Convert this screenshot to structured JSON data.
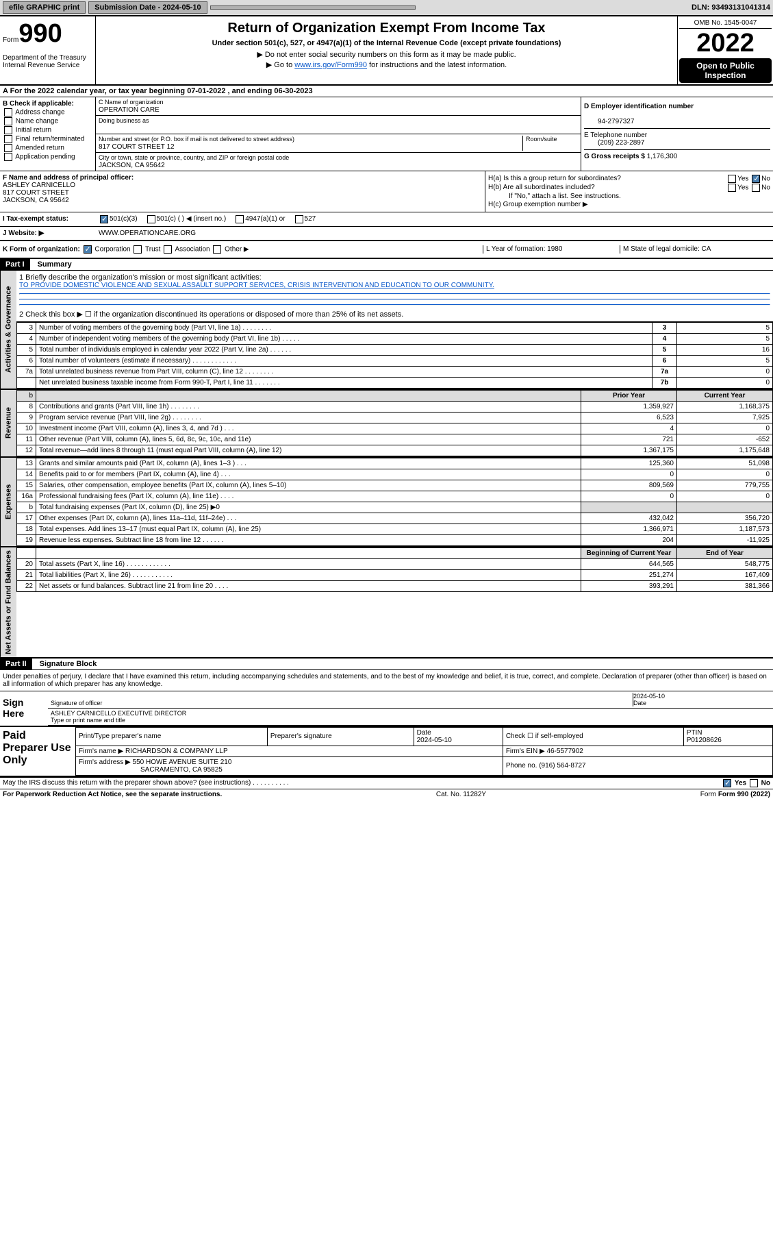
{
  "topbar": {
    "efile": "efile GRAPHIC print",
    "sub_label": "Submission Date - 2024-05-10",
    "dln": "DLN: 93493131041314"
  },
  "header": {
    "form_label": "Form",
    "form_number": "990",
    "title": "Return of Organization Exempt From Income Tax",
    "sub1": "Under section 501(c), 527, or 4947(a)(1) of the Internal Revenue Code (except private foundations)",
    "note1": "▶ Do not enter social security numbers on this form as it may be made public.",
    "note2_pre": "▶ Go to ",
    "note2_link": "www.irs.gov/Form990",
    "note2_post": " for instructions and the latest information.",
    "dept": "Department of the Treasury\nInternal Revenue Service",
    "omb": "OMB No. 1545-0047",
    "year": "2022",
    "inspection": "Open to Public Inspection"
  },
  "A": {
    "text": "A For the 2022 calendar year, or tax year beginning 07-01-2022     , and ending 06-30-2023"
  },
  "B": {
    "label": "B Check if applicable:",
    "opts": [
      "Address change",
      "Name change",
      "Initial return",
      "Final return/terminated",
      "Amended return",
      "Application pending"
    ]
  },
  "C": {
    "name_lbl": "C Name of organization",
    "name": "OPERATION CARE",
    "dba_lbl": "Doing business as",
    "addr_lbl": "Number and street (or P.O. box if mail is not delivered to street address)",
    "addr": "817 COURT STREET 12",
    "room_lbl": "Room/suite",
    "city_lbl": "City or town, state or province, country, and ZIP or foreign postal code",
    "city": "JACKSON, CA  95642"
  },
  "D": {
    "ein_lbl": "D Employer identification number",
    "ein": "94-2797327",
    "phone_lbl": "E Telephone number",
    "phone": "(209) 223-2897",
    "gross_lbl": "G Gross receipts $",
    "gross": "1,176,300"
  },
  "F": {
    "lbl": "F Name and address of principal officer:",
    "name": "ASHLEY CARNICELLO",
    "addr1": "817 COURT STREET",
    "addr2": "JACKSON, CA  95642"
  },
  "H": {
    "a": "H(a)  Is this a group return for subordinates?",
    "a_no": "No",
    "b": "H(b)  Are all subordinates included?",
    "b_note": "If \"No,\" attach a list. See instructions.",
    "c": "H(c)  Group exemption number ▶"
  },
  "I": {
    "lbl": "I   Tax-exempt status:",
    "opts": [
      "501(c)(3)",
      "501(c) (  ) ◀ (insert no.)",
      "4947(a)(1) or",
      "527"
    ]
  },
  "J": {
    "lbl": "J   Website: ▶",
    "val": "WWW.OPERATIONCARE.ORG"
  },
  "K": {
    "lbl": "K Form of organization:",
    "opts": [
      "Corporation",
      "Trust",
      "Association",
      "Other ▶"
    ],
    "L": "L Year of formation: 1980",
    "M": "M State of legal domicile: CA"
  },
  "part1": {
    "hdr": "Part I",
    "title": "Summary",
    "line1_lbl": "1  Briefly describe the organization's mission or most significant activities:",
    "mission": "TO PROVIDE DOMESTIC VIOLENCE AND SEXUAL ASSAULT SUPPORT SERVICES, CRISIS INTERVENTION AND EDUCATION TO OUR COMMUNITY.",
    "line2": "2   Check this box ▶ ☐  if the organization discontinued its operations or disposed of more than 25% of its net assets.",
    "sides": {
      "gov": "Activities & Governance",
      "rev": "Revenue",
      "exp": "Expenses",
      "net": "Net Assets or Fund Balances"
    },
    "rows_gov": [
      {
        "n": "3",
        "d": "Number of voting members of the governing body (Part VI, line 1a)   .    .    .    .    .    .    .    .",
        "b": "3",
        "v": "5"
      },
      {
        "n": "4",
        "d": "Number of independent voting members of the governing body (Part VI, line 1b)  .    .    .    .    .",
        "b": "4",
        "v": "5"
      },
      {
        "n": "5",
        "d": "Total number of individuals employed in calendar year 2022 (Part V, line 2a)   .    .    .    .    .    .",
        "b": "5",
        "v": "16"
      },
      {
        "n": "6",
        "d": "Total number of volunteers (estimate if necessary)   .    .    .    .    .    .    .    .    .    .    .    .",
        "b": "6",
        "v": "5"
      },
      {
        "n": "7a",
        "d": "Total unrelated business revenue from Part VIII, column (C), line 12  .    .    .    .    .    .    .    .",
        "b": "7a",
        "v": "0"
      },
      {
        "n": "",
        "d": "Net unrelated business taxable income from Form 990-T, Part I, line 11  .    .    .    .    .    .    .",
        "b": "7b",
        "v": "0"
      }
    ],
    "col_hdr": {
      "prior": "Prior Year",
      "current": "Current Year"
    },
    "rows_rev": [
      {
        "n": "8",
        "d": "Contributions and grants (Part VIII, line 1h)   .    .    .    .    .    .    .    .",
        "p": "1,359,927",
        "c": "1,168,375"
      },
      {
        "n": "9",
        "d": "Program service revenue (Part VIII, line 2g)   .    .    .    .    .    .    .    .",
        "p": "6,523",
        "c": "7,925"
      },
      {
        "n": "10",
        "d": "Investment income (Part VIII, column (A), lines 3, 4, and 7d )   .    .    .",
        "p": "4",
        "c": "0"
      },
      {
        "n": "11",
        "d": "Other revenue (Part VIII, column (A), lines 5, 6d, 8c, 9c, 10c, and 11e)",
        "p": "721",
        "c": "-652"
      },
      {
        "n": "12",
        "d": "Total revenue—add lines 8 through 11 (must equal Part VIII, column (A), line 12)",
        "p": "1,367,175",
        "c": "1,175,648"
      }
    ],
    "rows_exp": [
      {
        "n": "13",
        "d": "Grants and similar amounts paid (Part IX, column (A), lines 1–3 )   .    .    .",
        "p": "125,360",
        "c": "51,098"
      },
      {
        "n": "14",
        "d": "Benefits paid to or for members (Part IX, column (A), line 4)   .    .    .",
        "p": "0",
        "c": "0"
      },
      {
        "n": "15",
        "d": "Salaries, other compensation, employee benefits (Part IX, column (A), lines 5–10)",
        "p": "809,569",
        "c": "779,755"
      },
      {
        "n": "16a",
        "d": "Professional fundraising fees (Part IX, column (A), line 11e)   .    .    .    .",
        "p": "0",
        "c": "0"
      },
      {
        "n": "b",
        "d": "Total fundraising expenses (Part IX, column (D), line 25) ▶0",
        "p": "",
        "c": ""
      },
      {
        "n": "17",
        "d": "Other expenses (Part IX, column (A), lines 11a–11d, 11f–24e)   .    .    .",
        "p": "432,042",
        "c": "356,720"
      },
      {
        "n": "18",
        "d": "Total expenses. Add lines 13–17 (must equal Part IX, column (A), line 25)",
        "p": "1,366,971",
        "c": "1,187,573"
      },
      {
        "n": "19",
        "d": "Revenue less expenses. Subtract line 18 from line 12  .    .    .    .    .    .",
        "p": "204",
        "c": "-11,925"
      }
    ],
    "col_hdr2": {
      "prior": "Beginning of Current Year",
      "current": "End of Year"
    },
    "rows_net": [
      {
        "n": "20",
        "d": "Total assets (Part X, line 16)   .    .    .    .    .    .    .    .    .    .    .    .",
        "p": "644,565",
        "c": "548,775"
      },
      {
        "n": "21",
        "d": "Total liabilities (Part X, line 26)   .    .    .    .    .    .    .    .    .    .    .",
        "p": "251,274",
        "c": "167,409"
      },
      {
        "n": "22",
        "d": "Net assets or fund balances. Subtract line 21 from line 20   .    .    .    .",
        "p": "393,291",
        "c": "381,366"
      }
    ]
  },
  "part2": {
    "hdr": "Part II",
    "title": "Signature Block",
    "decl": "Under penalties of perjury, I declare that I have examined this return, including accompanying schedules and statements, and to the best of my knowledge and belief, it is true, correct, and complete. Declaration of preparer (other than officer) is based on all information of which preparer has any knowledge.",
    "sign_here": "Sign Here",
    "sig_officer": "Signature of officer",
    "sig_date": "2024-05-10",
    "date_lbl": "Date",
    "officer_name": "ASHLEY CARNICELLO  EXECUTIVE DIRECTOR",
    "type_name": "Type or print name and title"
  },
  "preparer": {
    "lbl": "Paid Preparer Use Only",
    "h1": "Print/Type preparer's name",
    "h2": "Preparer's signature",
    "h3": "Date",
    "date": "2024-05-10",
    "h4": "Check ☐ if self-employed",
    "h5": "PTIN",
    "ptin": "P01208626",
    "firm_name_lbl": "Firm's name      ▶",
    "firm_name": "RICHARDSON & COMPANY LLP",
    "firm_ein_lbl": "Firm's EIN ▶",
    "firm_ein": "46-5577902",
    "firm_addr_lbl": "Firm's address ▶",
    "firm_addr1": "550 HOWE AVENUE SUITE 210",
    "firm_addr2": "SACRAMENTO, CA  95825",
    "phone_lbl": "Phone no.",
    "phone": "(916) 564-8727"
  },
  "footer": {
    "discuss": "May the IRS discuss this return with the preparer shown above? (see instructions)   .    .    .    .    .    .    .    .    .    .",
    "yes": "Yes",
    "no": "No",
    "paperwork": "For Paperwork Reduction Act Notice, see the separate instructions.",
    "cat": "Cat. No. 11282Y",
    "form": "Form 990 (2022)"
  }
}
